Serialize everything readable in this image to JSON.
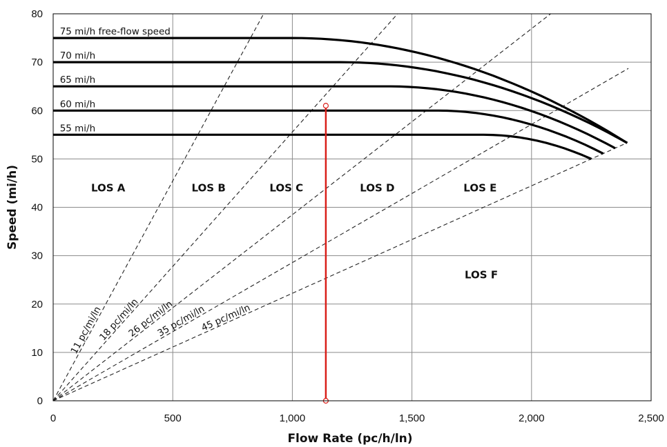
{
  "chart_data": {
    "type": "line",
    "xlabel": "Flow Rate (pc/h/ln)",
    "ylabel": "Speed (mi/h)",
    "xlim": [
      0,
      2500
    ],
    "ylim": [
      0,
      80
    ],
    "x_ticks": [
      0,
      500,
      1000,
      1500,
      2000,
      2500
    ],
    "x_tick_labels": [
      "0",
      "500",
      "1,000",
      "1,500",
      "2,000",
      "2,500"
    ],
    "y_ticks": [
      0,
      10,
      20,
      30,
      40,
      50,
      60,
      70,
      80
    ],
    "y_tick_labels": [
      "0",
      "10",
      "20",
      "30",
      "40",
      "50",
      "60",
      "70",
      "80"
    ],
    "grid": true,
    "speed_flow_curves": [
      {
        "name": "75 mi/h free-flow speed",
        "ffs": 75,
        "breakpoint": 1000,
        "capacity": 2400,
        "speed_at_capacity": 53.3
      },
      {
        "name": "70 mi/h",
        "ffs": 70,
        "breakpoint": 1200,
        "capacity": 2400,
        "speed_at_capacity": 53.3
      },
      {
        "name": "65 mi/h",
        "ffs": 65,
        "breakpoint": 1400,
        "capacity": 2350,
        "speed_at_capacity": 52.2
      },
      {
        "name": "60 mi/h",
        "ffs": 60,
        "breakpoint": 1600,
        "capacity": 2300,
        "speed_at_capacity": 51.1
      },
      {
        "name": "55 mi/h",
        "ffs": 55,
        "breakpoint": 1800,
        "capacity": 2250,
        "speed_at_capacity": 50.0
      }
    ],
    "density_lines": [
      {
        "name": "11 pc/mi/ln",
        "density": 11
      },
      {
        "name": "18 pc/mi/ln",
        "density": 18
      },
      {
        "name": "26 pc/mi/ln",
        "density": 26
      },
      {
        "name": "35 pc/mi/ln",
        "density": 35
      },
      {
        "name": "45 pc/mi/ln",
        "density": 45
      }
    ],
    "los_regions": [
      {
        "label": "LOS A",
        "x": 230,
        "y": 44
      },
      {
        "label": "LOS B",
        "x": 650,
        "y": 44
      },
      {
        "label": "LOS C",
        "x": 975,
        "y": 44
      },
      {
        "label": "LOS D",
        "x": 1355,
        "y": 44
      },
      {
        "label": "LOS E",
        "x": 1785,
        "y": 44
      },
      {
        "label": "LOS F",
        "x": 1790,
        "y": 26
      }
    ],
    "marker_line": {
      "x": 1140,
      "y_bottom": 0,
      "y_top": 61,
      "color": "#d91e18"
    }
  }
}
